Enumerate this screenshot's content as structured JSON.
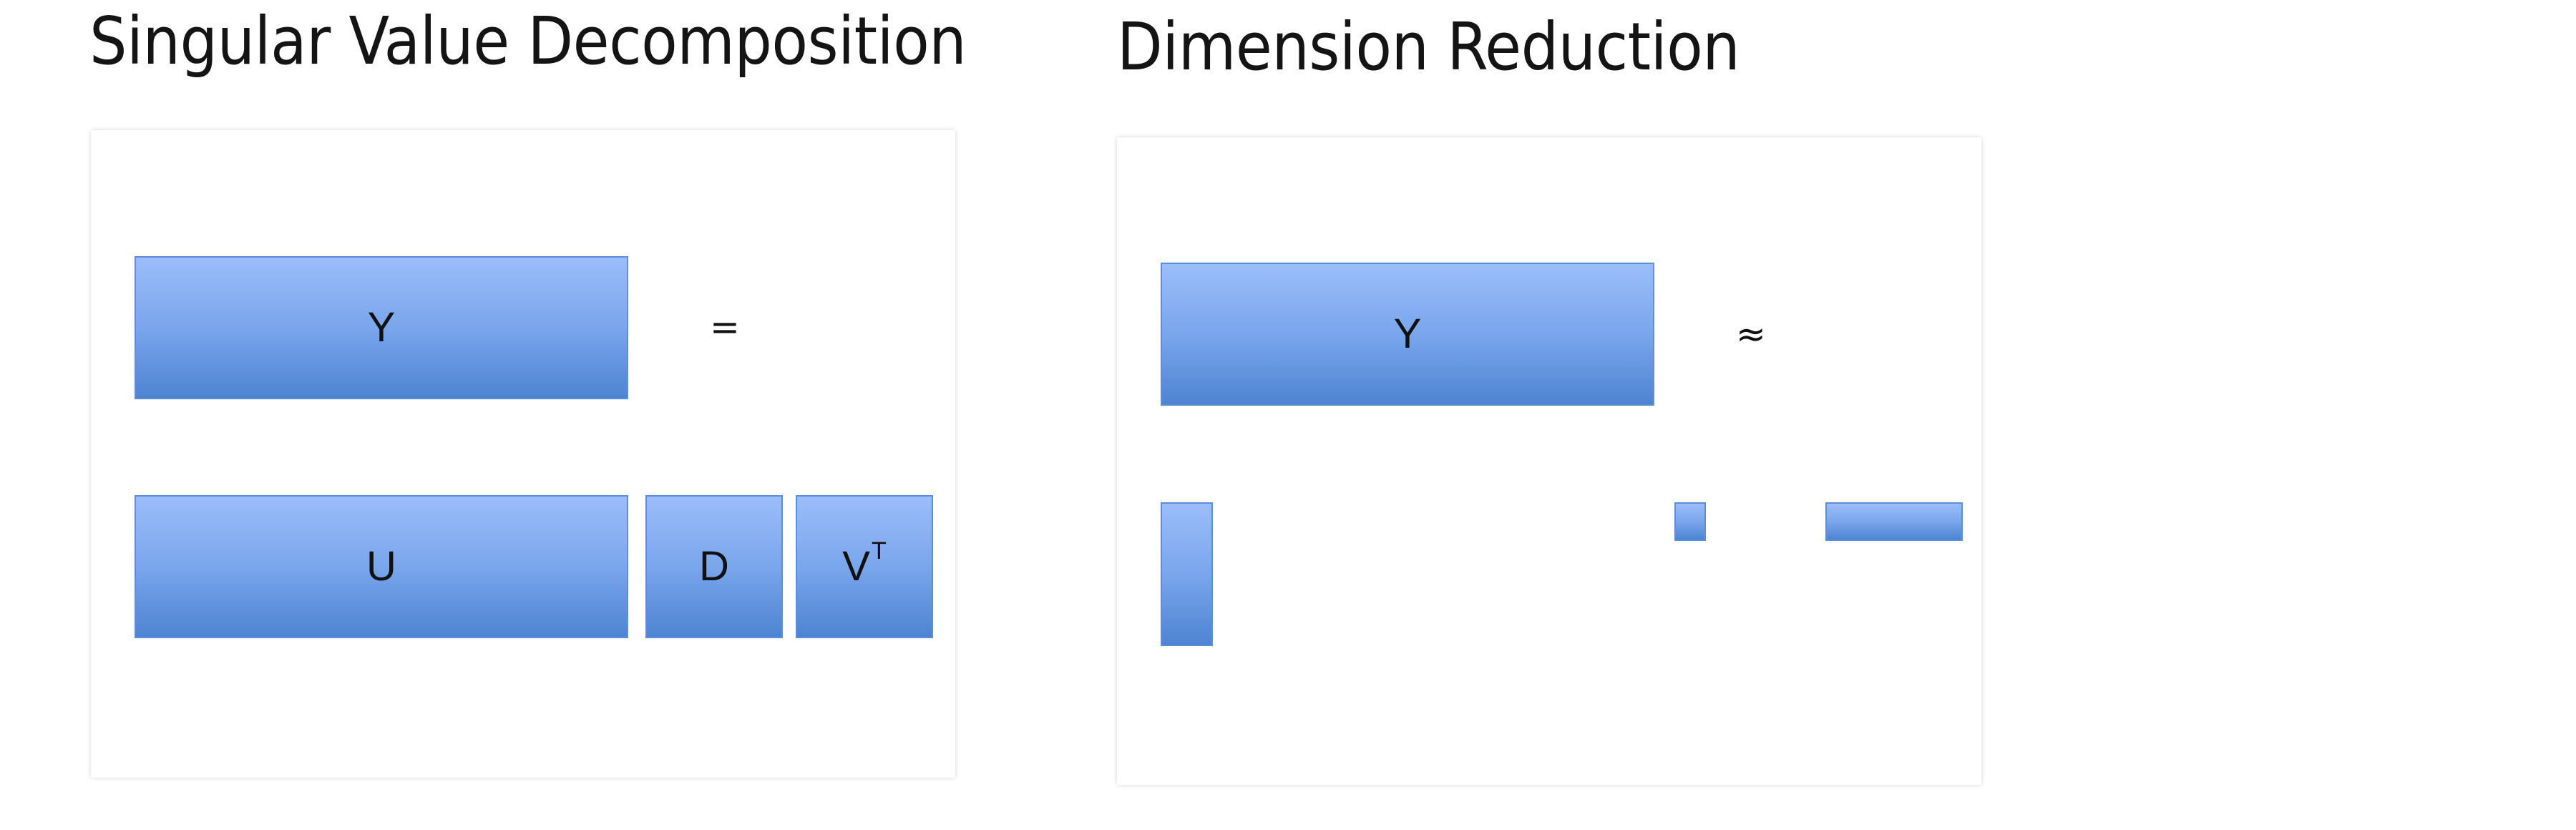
{
  "panels": {
    "svd": {
      "title": "Singular Value Decomposition",
      "y_label": "Y",
      "operator": "=",
      "u_label": "U",
      "d_label": "D",
      "v_label": "V",
      "v_superscript": "T"
    },
    "reduction": {
      "title": "Dimension Reduction",
      "y_label": "Y",
      "operator": "≈"
    }
  },
  "colors": {
    "matrix_gradient_top": "#9bbdfa",
    "matrix_gradient_bottom": "#4d84d2",
    "matrix_border": "#5a8fd9",
    "panel_background": "#ffffff",
    "text": "#141414"
  }
}
